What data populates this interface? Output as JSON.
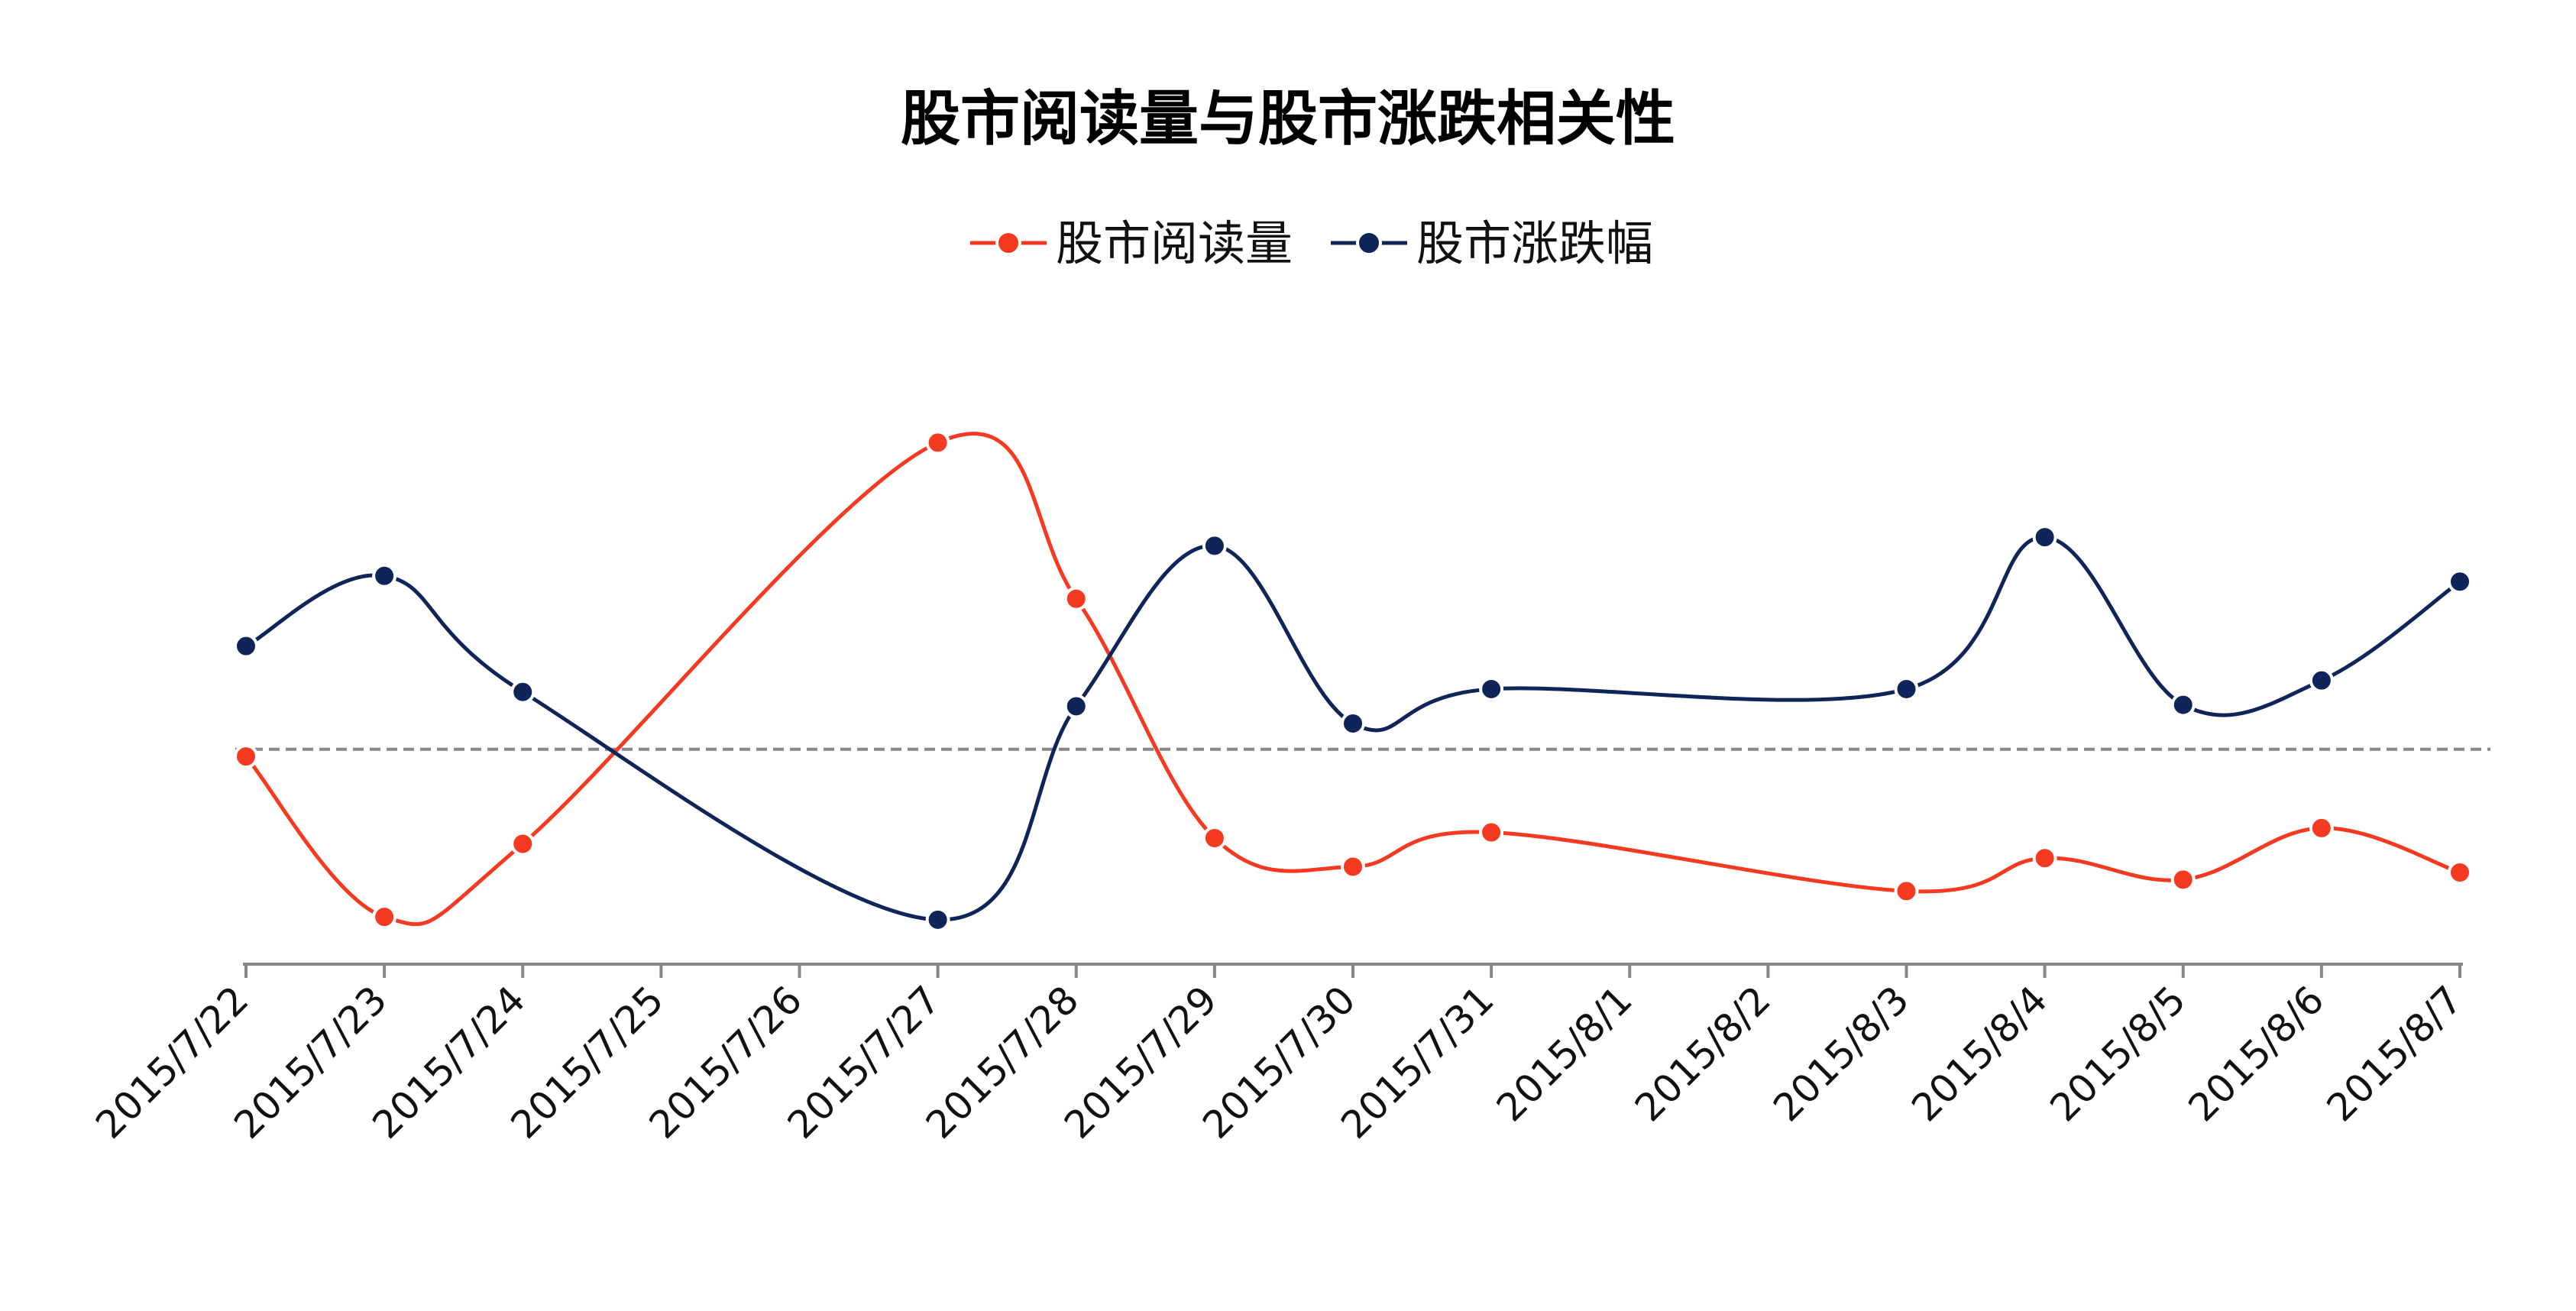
{
  "chart_data": {
    "type": "line",
    "title": "股市阅读量与股市涨跌相关性",
    "xlabel": "",
    "ylabel": "",
    "legend_position": "top",
    "grid": false,
    "y_axis_labels": "hidden",
    "baseline": 0,
    "baseline_style": "dashed",
    "x": [
      "2015/7/22",
      "2015/7/23",
      "2015/7/24",
      "2015/7/25",
      "2015/7/26",
      "2015/7/27",
      "2015/7/28",
      "2015/7/29",
      "2015/7/30",
      "2015/7/31",
      "2015/8/1",
      "2015/8/2",
      "2015/8/3",
      "2015/8/4",
      "2015/8/5",
      "2015/8/6",
      "2015/8/7"
    ],
    "series": [
      {
        "name": "股市阅读量",
        "color": "#F53A21",
        "values": [
          -0.05,
          -1.17,
          -0.66,
          null,
          null,
          2.14,
          1.05,
          -0.62,
          -0.82,
          -0.58,
          null,
          null,
          -0.99,
          -0.76,
          -0.91,
          -0.55,
          -0.86
        ]
      },
      {
        "name": "股市涨跌幅",
        "color": "#0F2458",
        "values": [
          0.72,
          1.21,
          0.4,
          null,
          null,
          -1.19,
          0.3,
          1.42,
          0.18,
          0.42,
          null,
          null,
          0.42,
          1.48,
          0.31,
          0.48,
          1.17
        ]
      }
    ],
    "ylim": [
      -1.5,
      2.35
    ]
  }
}
